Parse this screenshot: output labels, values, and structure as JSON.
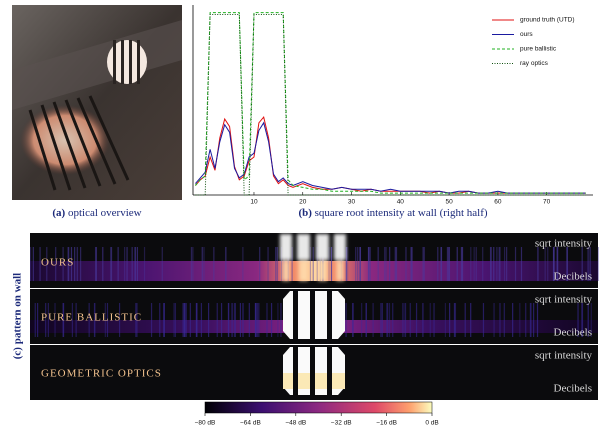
{
  "panel_a": {
    "caption": {
      "label": "(a)",
      "text": "optical overview"
    }
  },
  "chart_data": {
    "type": "line",
    "caption": {
      "label": "(b)",
      "text": "square root intensity at wall (right half)"
    },
    "x": [
      -2,
      -1,
      0,
      1,
      2,
      3,
      4,
      5,
      6,
      7,
      8,
      9,
      10,
      11,
      12,
      13,
      14,
      15,
      16,
      17,
      18,
      20,
      22,
      24,
      26,
      28,
      30,
      32,
      34,
      36,
      38,
      40,
      42,
      44,
      46,
      48,
      50,
      52,
      54,
      56,
      58,
      60,
      62,
      64,
      66,
      68,
      70,
      72,
      74,
      76,
      78
    ],
    "series": [
      {
        "name": "ground truth (UTD)",
        "color": "#e01010",
        "style": "solid",
        "values": [
          0.05,
          0.08,
          0.1,
          0.2,
          0.13,
          0.3,
          0.4,
          0.36,
          0.15,
          0.08,
          0.1,
          0.18,
          0.2,
          0.38,
          0.41,
          0.3,
          0.1,
          0.06,
          0.08,
          0.05,
          0.04,
          0.06,
          0.04,
          0.03,
          0.03,
          0.04,
          0.03,
          0.02,
          0.03,
          0.02,
          0.02,
          0.02,
          0.02,
          0.02,
          0.01,
          0.02,
          0.01,
          0.01,
          0.02,
          0.01,
          0.01,
          0.01,
          0.01,
          0.01,
          0.01,
          0.01,
          0.01,
          0.01,
          0.01,
          0.01,
          0.01
        ]
      },
      {
        "name": "ours",
        "color": "#1a1aa0",
        "style": "solid",
        "values": [
          0.06,
          0.09,
          0.12,
          0.24,
          0.14,
          0.28,
          0.37,
          0.33,
          0.14,
          0.09,
          0.11,
          0.2,
          0.22,
          0.34,
          0.38,
          0.28,
          0.11,
          0.07,
          0.09,
          0.06,
          0.05,
          0.07,
          0.05,
          0.04,
          0.03,
          0.04,
          0.03,
          0.03,
          0.03,
          0.02,
          0.03,
          0.02,
          0.02,
          0.02,
          0.02,
          0.02,
          0.01,
          0.02,
          0.02,
          0.01,
          0.01,
          0.02,
          0.01,
          0.01,
          0.01,
          0.01,
          0.01,
          0.01,
          0.01,
          0.01,
          0.01
        ]
      },
      {
        "name": "pure ballistic",
        "color": "#20b020",
        "style": "dashed",
        "values": [
          0.05,
          0.08,
          0.1,
          0.96,
          0.96,
          0.96,
          0.96,
          0.96,
          0.96,
          0.96,
          0.08,
          0.1,
          0.96,
          0.96,
          0.96,
          0.96,
          0.96,
          0.96,
          0.96,
          0.08,
          0.05,
          0.04,
          0.03,
          0.03,
          0.02,
          0.02,
          0.02,
          0.02,
          0.02,
          0.01,
          0.01,
          0.01,
          0.01,
          0.01,
          0.01,
          0.01,
          0.01,
          0.01,
          0.01,
          0.01,
          0.01,
          0.01,
          0.01,
          0.01,
          0.01,
          0.01,
          0.01,
          0.01,
          0.01,
          0.01,
          0.01
        ]
      },
      {
        "name": "ray optics",
        "color": "#105010",
        "style": "dotted",
        "values": [
          0,
          0,
          0,
          0.95,
          0.95,
          0.95,
          0.95,
          0.95,
          0.95,
          0.95,
          0,
          0,
          0.95,
          0.95,
          0.95,
          0.95,
          0.95,
          0.95,
          0.95,
          0,
          0,
          0,
          0,
          0,
          0,
          0,
          0,
          0,
          0,
          0,
          0,
          0,
          0,
          0,
          0,
          0,
          0,
          0,
          0,
          0,
          0,
          0,
          0,
          0,
          0,
          0,
          0,
          0,
          0,
          0,
          0
        ]
      }
    ],
    "xlim": [
      -2.5,
      79.5
    ],
    "xticks": [
      10,
      20,
      30,
      40,
      50,
      60,
      70
    ],
    "ylim": [
      0,
      1
    ],
    "legend": "upper right"
  },
  "panel_c": {
    "caption": "(c) pattern on wall",
    "rows": [
      "OURS",
      "PURE BALLISTIC",
      "GEOMETRIC OPTICS"
    ],
    "top_label": "sqrt intensity",
    "bottom_label": "Decibels",
    "colorbar": {
      "lim": [
        -80,
        0
      ],
      "ticks": [
        {
          "value": -80,
          "label": "−80 dB"
        },
        {
          "value": -64,
          "label": "−64 dB"
        },
        {
          "value": -48,
          "label": "−48 dB"
        },
        {
          "value": -32,
          "label": "−32 dB"
        },
        {
          "value": -16,
          "label": "−16 dB"
        },
        {
          "value": 0,
          "label": "0 dB"
        }
      ]
    }
  }
}
